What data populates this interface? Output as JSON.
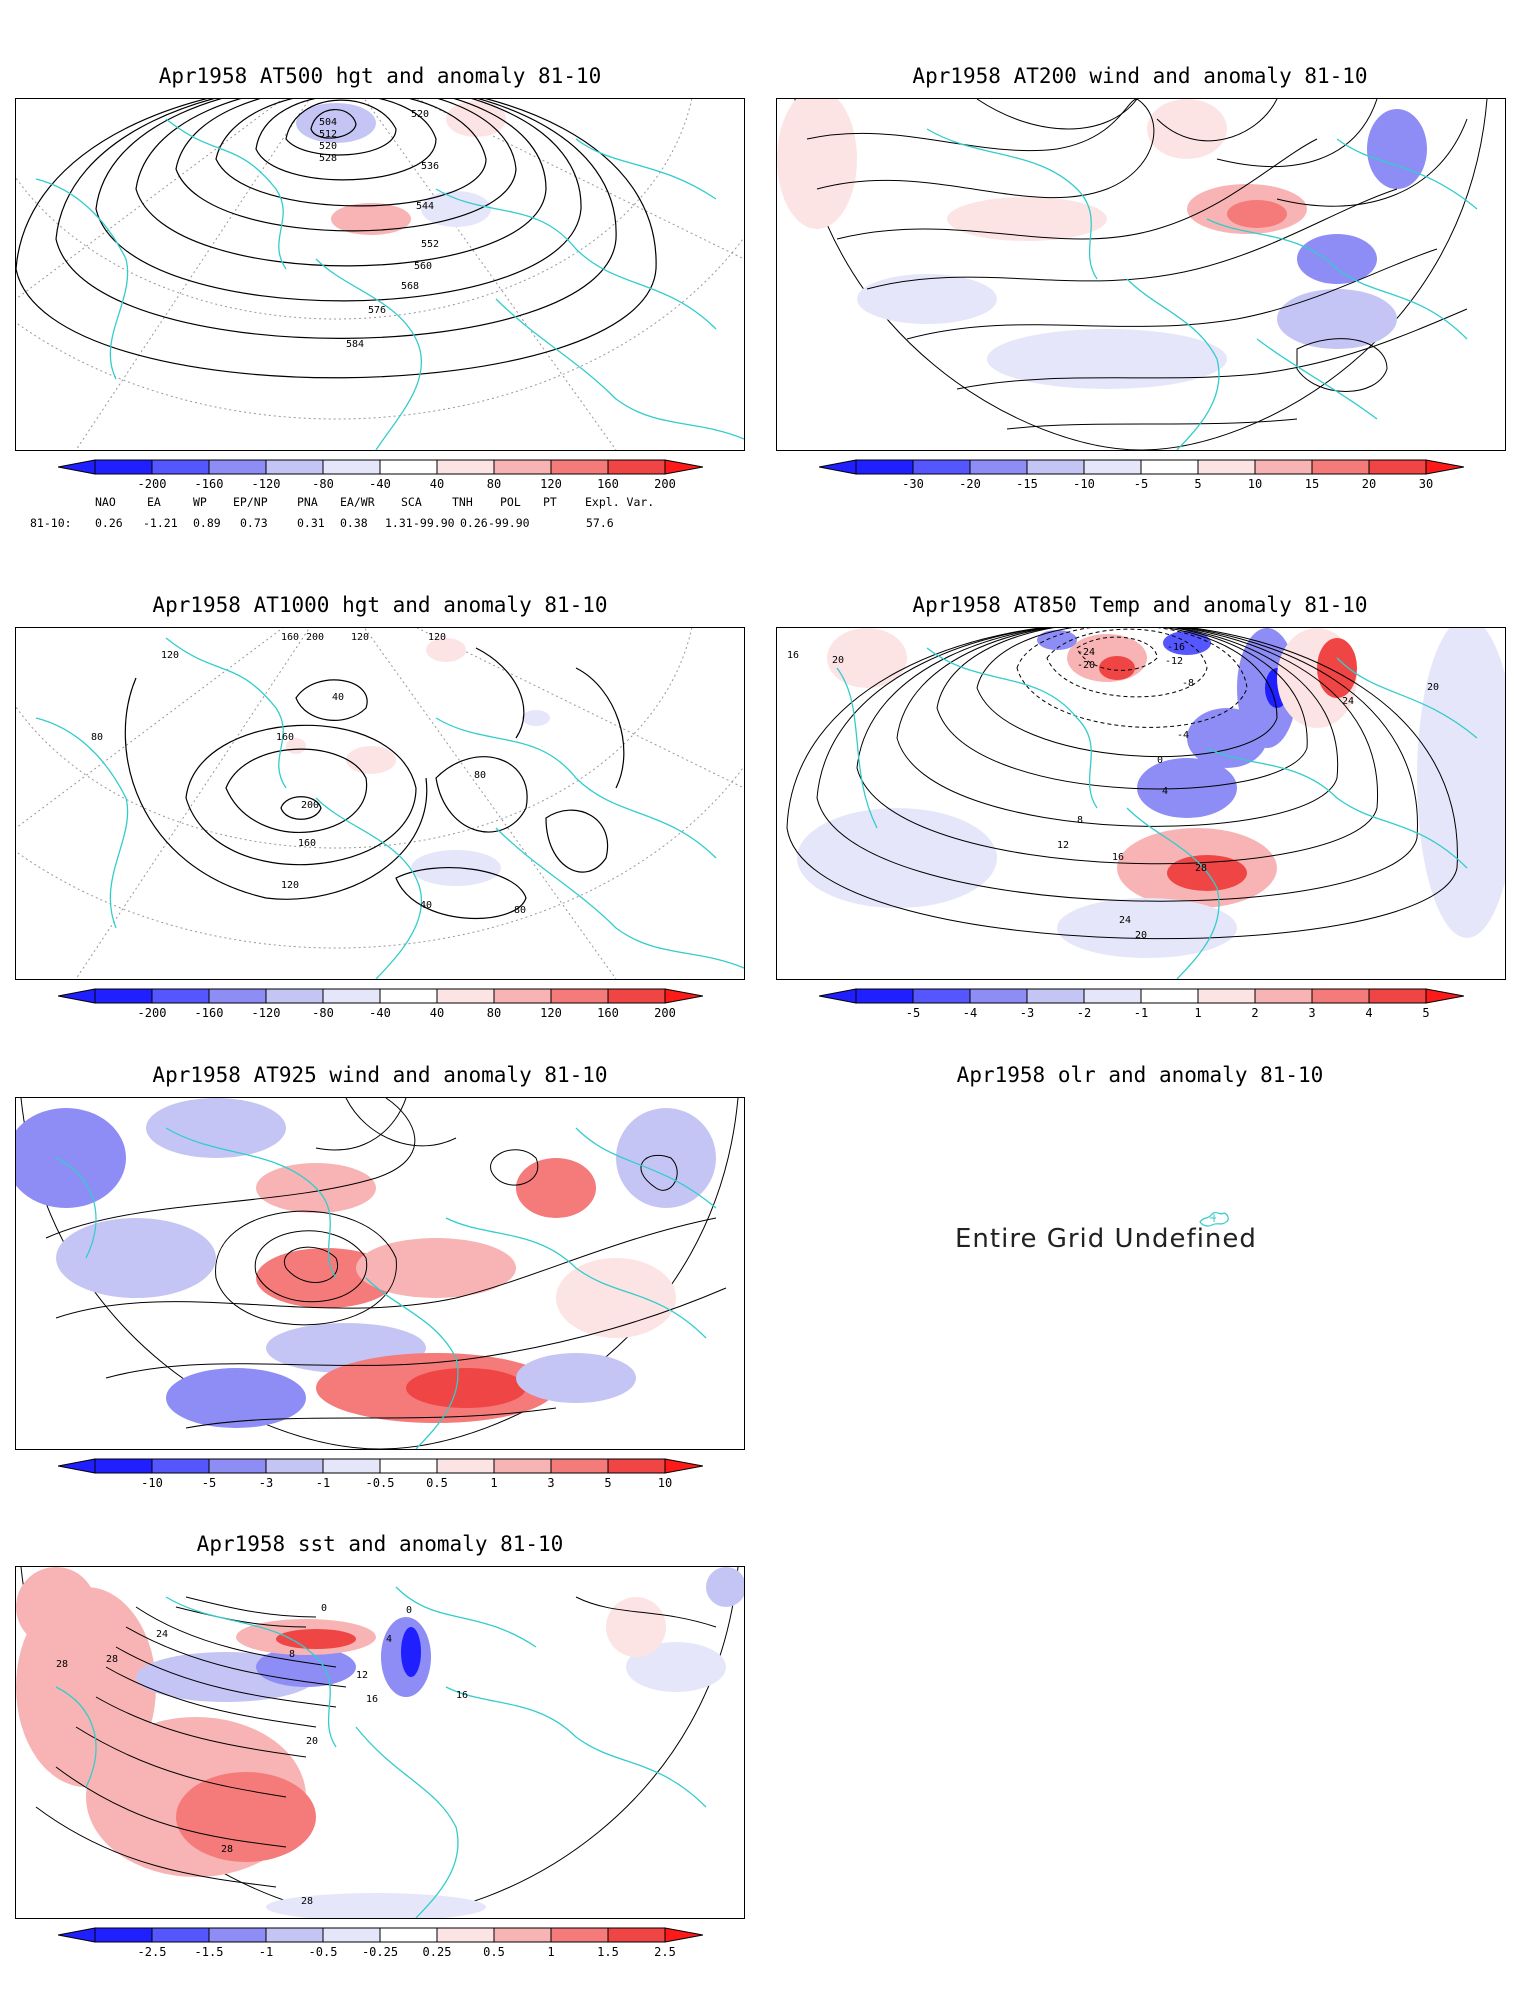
{
  "colors": {
    "coast": "#33cccc",
    "contour": "#000000",
    "neg": [
      "#1f1fff",
      "#5656ff",
      "#8d8df5",
      "#c5c5f5",
      "#e6e6fa"
    ],
    "pos": [
      "#fde4e4",
      "#f8b4b4",
      "#f57a7a",
      "#f04545",
      "#ff1a1a"
    ]
  },
  "panels": {
    "p500": {
      "title": "Apr1958 AT500 hgt and anomaly 81-10",
      "colorbar": [
        "-200",
        "-160",
        "-120",
        "-80",
        "-40",
        "40",
        "80",
        "120",
        "160",
        "200"
      ],
      "contour_labels": [
        "504",
        "512",
        "520",
        "528",
        "520",
        "536",
        "544",
        "552",
        "560",
        "568",
        "576",
        "584"
      ]
    },
    "p200": {
      "title": "Apr1958 AT200 wind and anomaly 81-10",
      "colorbar": [
        "-30",
        "-20",
        "-15",
        "-10",
        "-5",
        "5",
        "10",
        "15",
        "20",
        "30"
      ]
    },
    "p1000": {
      "title": "Apr1958 AT1000 hgt and anomaly 81-10",
      "colorbar": [
        "-200",
        "-160",
        "-120",
        "-80",
        "-40",
        "40",
        "80",
        "120",
        "160",
        "200"
      ],
      "contour_labels": [
        "120",
        "160",
        "200",
        "160",
        "120",
        "80",
        "40",
        "80",
        "120",
        "160",
        "200",
        "120",
        "80",
        "40"
      ]
    },
    "p850": {
      "title": "Apr1958 AT850 Temp and anomaly 81-10",
      "colorbar": [
        "-5",
        "-4",
        "-3",
        "-2",
        "-1",
        "1",
        "2",
        "3",
        "4",
        "5"
      ],
      "contour_labels": [
        "16",
        "20",
        "-24",
        "-20",
        "-16",
        "-12",
        "-8",
        "-4",
        "0",
        "4",
        "8",
        "12",
        "16",
        "20",
        "24",
        "28",
        "24",
        "20"
      ]
    },
    "p925": {
      "title": "Apr1958 AT925 wind and anomaly 81-10",
      "colorbar": [
        "-10",
        "-5",
        "-3",
        "-1",
        "-0.5",
        "0.5",
        "1",
        "3",
        "5",
        "10"
      ]
    },
    "olr": {
      "title": "Apr1958 olr and anomaly 81-10",
      "message": "Entire Grid Undefined"
    },
    "sst": {
      "title": "Apr1958 sst and anomaly 81-10",
      "colorbar": [
        "-2.5",
        "-1.5",
        "-1",
        "-0.5",
        "-0.25",
        "0.25",
        "0.5",
        "1",
        "1.5",
        "2.5"
      ],
      "contour_labels": [
        "28",
        "28",
        "24",
        "20",
        "16",
        "12",
        "8",
        "4",
        "0",
        "0",
        "28",
        "28",
        "16"
      ]
    }
  },
  "indices": {
    "names": [
      "NAO",
      "EA",
      "WP",
      "EP/NP",
      "PNA",
      "EA/WR",
      "SCA",
      "TNH",
      "POL",
      "PT",
      "Expl. Var."
    ],
    "row_label": "81-10:",
    "values": [
      "0.26",
      "-1.21",
      "0.89",
      "0.73",
      "0.31",
      "0.38",
      "1.31",
      "-99.90",
      "0.26",
      "-99.90",
      "57.6"
    ]
  }
}
